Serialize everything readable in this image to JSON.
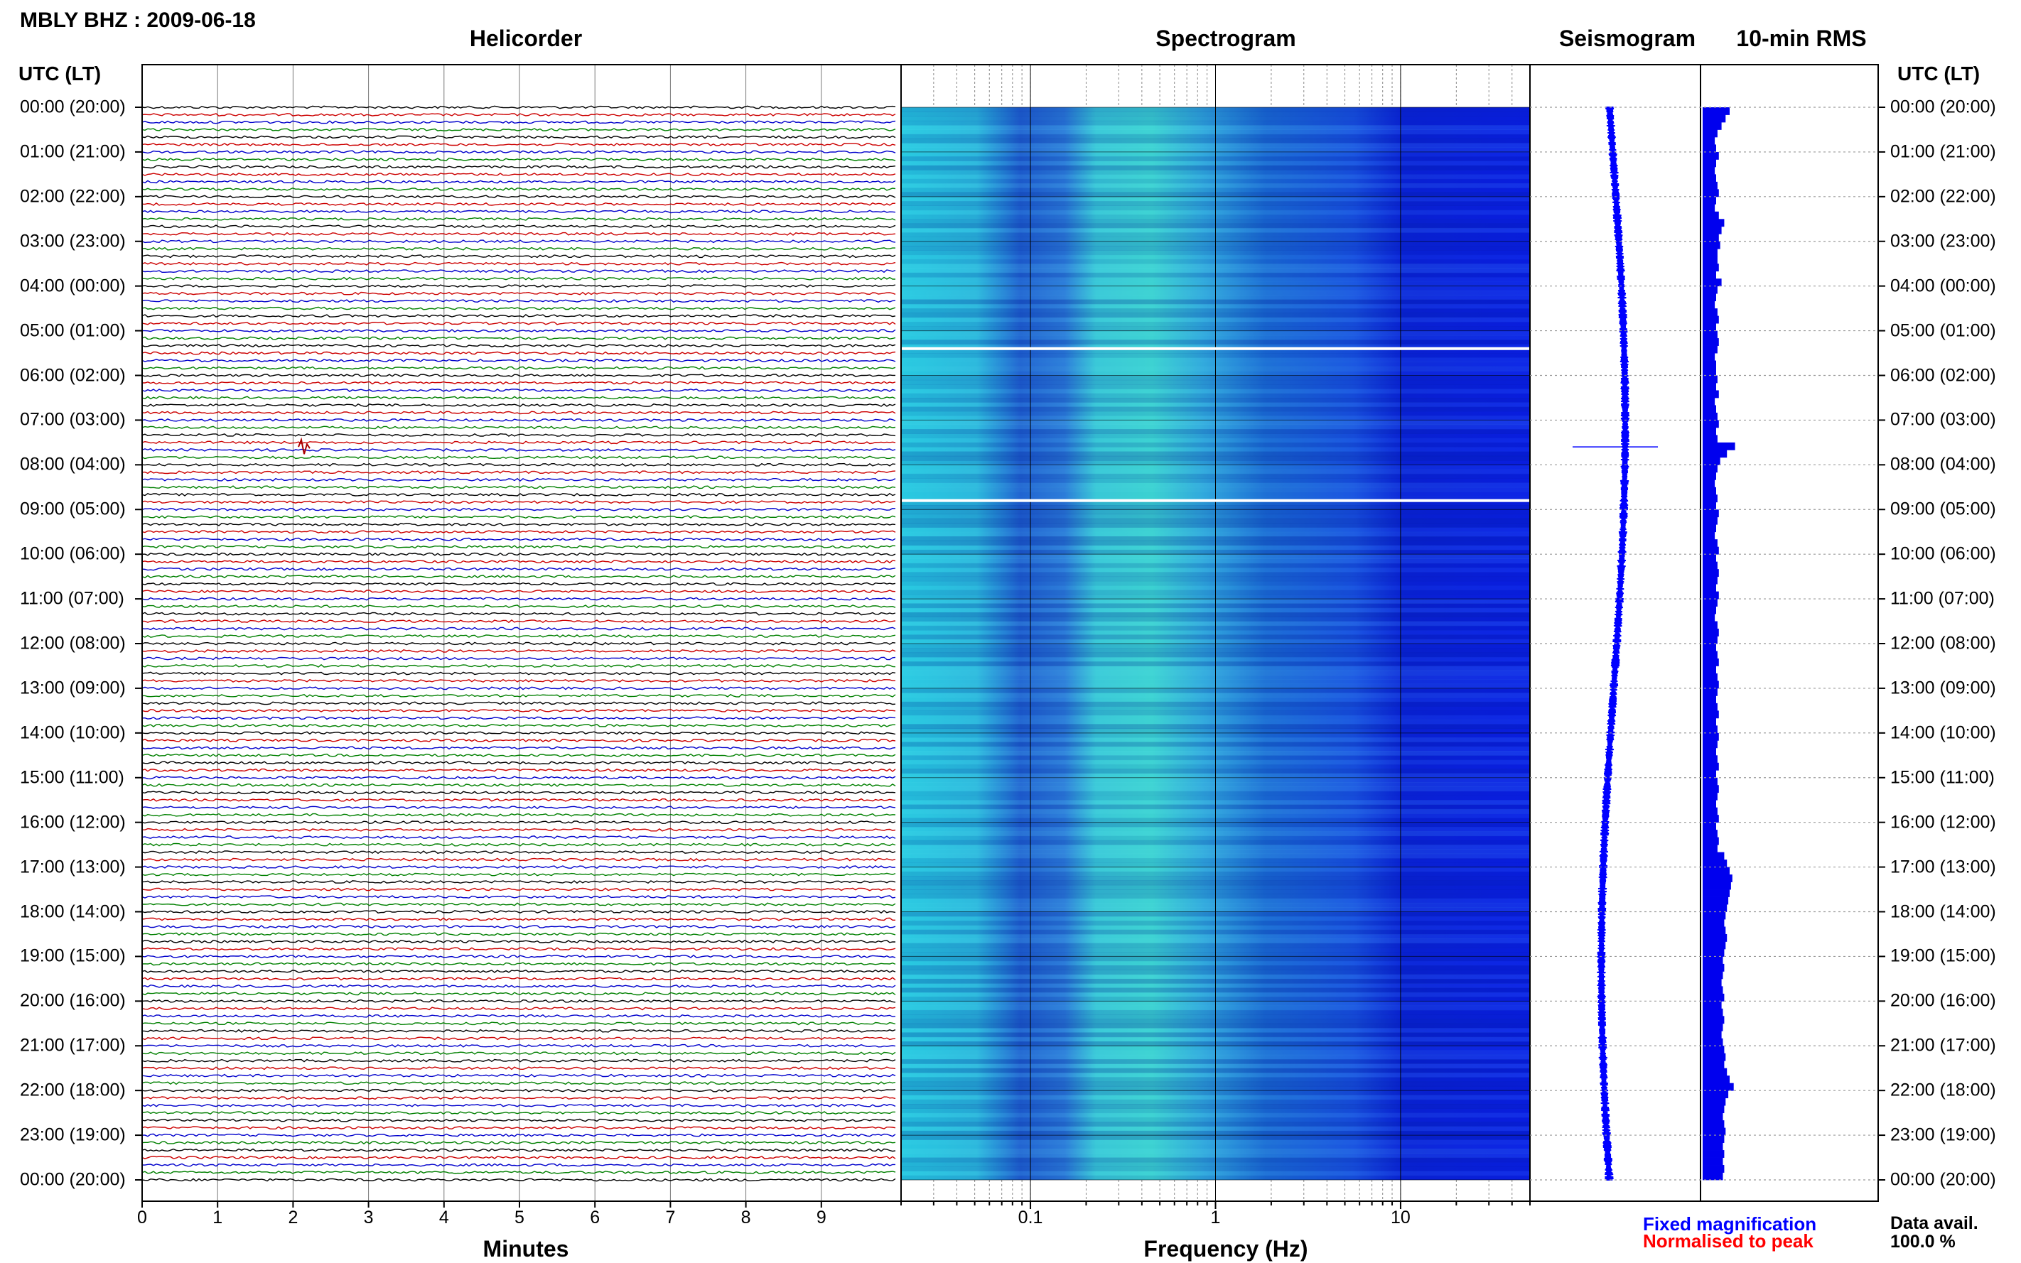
{
  "header": {
    "station": "MBLY BHZ : 2009-06-18",
    "utc_label": "UTC (LT)"
  },
  "panels": {
    "helicorder": "Helicorder",
    "spectrogram": "Spectrogram",
    "seismogram": "Seismogram",
    "rms": "10-min RMS"
  },
  "legend": {
    "fixed": "Fixed magnification",
    "normalised": "Normalised to peak",
    "data_avail_label": "Data avail.",
    "data_avail_value": "100.0 %",
    "fixed_color": "#0000ff",
    "normalised_color": "#ff0000"
  },
  "chart_data": [
    {
      "type": "line",
      "name": "helicorder",
      "xlabel": "Minutes",
      "xlim": [
        0,
        10
      ],
      "x_ticks": [
        "0",
        "1",
        "2",
        "3",
        "4",
        "5",
        "6",
        "7",
        "8",
        "9"
      ],
      "time_labels": [
        "00:00 (20:00)",
        "01:00 (21:00)",
        "02:00 (22:00)",
        "03:00 (23:00)",
        "04:00 (00:00)",
        "05:00 (01:00)",
        "06:00 (02:00)",
        "07:00 (03:00)",
        "08:00 (04:00)",
        "09:00 (05:00)",
        "10:00 (06:00)",
        "11:00 (07:00)",
        "12:00 (08:00)",
        "13:00 (09:00)",
        "14:00 (10:00)",
        "15:00 (11:00)",
        "16:00 (12:00)",
        "17:00 (13:00)",
        "18:00 (14:00)",
        "19:00 (15:00)",
        "20:00 (16:00)",
        "21:00 (17:00)",
        "22:00 (18:00)",
        "23:00 (19:00)",
        "00:00 (20:00)"
      ],
      "trace_colors": [
        "#000000",
        "#cc0000",
        "#0000cc",
        "#008000"
      ],
      "traces_per_hour": 6
    },
    {
      "type": "heatmap",
      "name": "spectrogram",
      "xlabel": "Frequency (Hz)",
      "x_scale": "log",
      "xlim": [
        0.02,
        50
      ],
      "x_ticks": [
        "0.1",
        "1",
        "10"
      ],
      "gaps_utc_hours": [
        5.4,
        8.8
      ]
    },
    {
      "type": "line",
      "name": "seismogram",
      "event_utc_hour": 7.6
    },
    {
      "type": "bar",
      "name": "rms",
      "orientation": "horizontal",
      "bar_color": "#0000ee",
      "values": [
        1.0,
        0.85,
        0.7,
        0.55,
        0.45,
        0.5,
        0.6,
        0.5,
        0.45,
        0.5,
        0.55,
        0.6,
        0.5,
        0.45,
        0.6,
        0.8,
        0.7,
        0.6,
        0.65,
        0.55,
        0.55,
        0.6,
        0.5,
        0.7,
        0.55,
        0.5,
        0.45,
        0.55,
        0.6,
        0.5,
        0.55,
        0.6,
        0.55,
        0.45,
        0.5,
        0.5,
        0.55,
        0.5,
        0.6,
        0.45,
        0.5,
        0.55,
        0.6,
        0.5,
        0.55,
        1.2,
        0.9,
        0.65,
        0.55,
        0.5,
        0.45,
        0.5,
        0.55,
        0.5,
        0.6,
        0.55,
        0.5,
        0.45,
        0.55,
        0.6,
        0.5,
        0.55,
        0.6,
        0.55,
        0.5,
        0.6,
        0.55,
        0.5,
        0.45,
        0.55,
        0.6,
        0.55,
        0.5,
        0.55,
        0.6,
        0.5,
        0.55,
        0.6,
        0.55,
        0.5,
        0.55,
        0.6,
        0.5,
        0.55,
        0.6,
        0.55,
        0.5,
        0.55,
        0.6,
        0.5,
        0.55,
        0.6,
        0.55,
        0.5,
        0.55,
        0.6,
        0.5,
        0.55,
        0.6,
        0.55,
        0.8,
        0.9,
        1.0,
        1.1,
        1.05,
        1.0,
        0.95,
        0.9,
        0.85,
        0.8,
        0.85,
        0.9,
        0.85,
        0.8,
        0.75,
        0.8,
        0.75,
        0.7,
        0.75,
        0.8,
        0.7,
        0.75,
        0.8,
        0.75,
        0.7,
        0.75,
        0.8,
        0.85,
        0.8,
        0.9,
        1.0,
        1.15,
        0.95,
        0.85,
        0.8,
        0.75,
        0.8,
        0.85,
        0.8,
        0.75,
        0.8,
        0.75,
        0.8,
        0.75
      ]
    }
  ]
}
